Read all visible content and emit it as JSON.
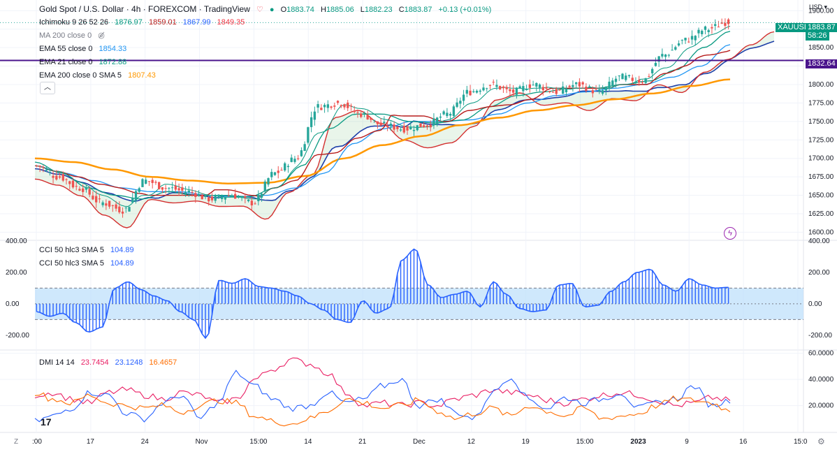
{
  "header": {
    "symbol_title": "Gold Spot / U.S. Dollar · 4h · FOREXCOM · TradingView",
    "o_label": "O",
    "o_value": "1883.74",
    "h_label": "H",
    "h_value": "1885.06",
    "l_label": "L",
    "l_value": "1882.23",
    "c_label": "C",
    "c_value": "1883.87",
    "change": "+0.13 (+0.01%)"
  },
  "legends": {
    "ichimoku": {
      "name": "Ichimoku 9 26 52 26",
      "v1": "1876.97",
      "v2": "1859.01",
      "v3": "1867.99",
      "v4": "1849.35"
    },
    "ma200": {
      "name": "MA 200 close 0"
    },
    "ema55": {
      "name": "EMA 55 close 0",
      "value": "1854.33"
    },
    "ema21": {
      "name": "EMA 21 close 0",
      "value": "1872.88"
    },
    "ema200": {
      "name": "EMA 200 close 0 SMA 5",
      "value": "1807.43"
    },
    "cci1": {
      "name": "CCI 50 hlc3 SMA 5",
      "value": "104.89"
    },
    "cci2": {
      "name": "CCI 50 hlc3 SMA 5",
      "value": "104.89"
    },
    "dmi": {
      "name": "DMI 14 14",
      "v1": "23.7454",
      "v2": "23.1248",
      "v3": "16.4657"
    }
  },
  "price_tags": {
    "symbol": "XAUUSD",
    "price": "1883.87",
    "countdown": "58:26",
    "hline": "1832.64",
    "currency": "USD"
  },
  "colors": {
    "up": "#26a69a",
    "down": "#ef5350",
    "tenkan": "#2962ff",
    "kijun": "#b71c1c",
    "ema21": "#089981",
    "ema55": "#2196f3",
    "ema200": "#ff9800",
    "hline": "#4a148c",
    "cci": "#2962ff",
    "cci_band": "#bbdefb",
    "dmi_plus": "#2962ff",
    "dmi_minus": "#e91e63",
    "adx": "#ff6d00"
  },
  "chart_data": [
    {
      "type": "candlestick",
      "title": "Gold Spot / U.S. Dollar · 4h · FOREXCOM · TradingView",
      "ylabel": "USD",
      "ylim": [
        1590,
        1905
      ],
      "y_ticks": [
        "1900.00",
        "1875.00",
        "1850.00",
        "1825.00",
        "1800.00",
        "1775.00",
        "1750.00",
        "1725.00",
        "1700.00",
        "1675.00",
        "1650.00",
        "1625.00",
        "1600.00"
      ],
      "x_ticks": [
        ":00",
        "17",
        "24",
        "Nov",
        "15:00",
        "14",
        "21",
        "Dec",
        "12",
        "19",
        "15:00",
        "2023",
        "9",
        "16",
        "15:0"
      ],
      "close_anchors": [
        1690,
        1675,
        1660,
        1640,
        1630,
        1670,
        1660,
        1655,
        1645,
        1650,
        1640,
        1680,
        1700,
        1770,
        1775,
        1760,
        1745,
        1740,
        1745,
        1760,
        1790,
        1800,
        1790,
        1800,
        1790,
        1800,
        1790,
        1810,
        1805,
        1840,
        1860,
        1875,
        1885
      ],
      "ema21_anchors": [
        1695,
        1680,
        1660,
        1650,
        1645,
        1655,
        1650,
        1650,
        1648,
        1660,
        1690,
        1740,
        1760,
        1760,
        1750,
        1748,
        1752,
        1770,
        1785,
        1790,
        1795,
        1795,
        1800,
        1805,
        1820,
        1850,
        1872
      ],
      "ema55_anchors": [
        1690,
        1680,
        1670,
        1660,
        1655,
        1655,
        1650,
        1648,
        1650,
        1660,
        1680,
        1720,
        1740,
        1750,
        1750,
        1752,
        1760,
        1775,
        1785,
        1790,
        1795,
        1800,
        1810,
        1825,
        1854
      ],
      "ema200_anchors": [
        1700,
        1695,
        1685,
        1675,
        1670,
        1666,
        1667,
        1676,
        1700,
        1718,
        1730,
        1745,
        1755,
        1765,
        1772,
        1780,
        1788,
        1798,
        1807
      ],
      "hline": 1832.64
    },
    {
      "type": "area",
      "name": "CCI 50 hlc3 SMA 5",
      "ylim": [
        -290,
        400
      ],
      "y_ticks": [
        "400.00",
        "200.00",
        "0.00",
        "-200.00"
      ],
      "band": [
        -100,
        100
      ],
      "anchors": [
        -50,
        -80,
        -60,
        -120,
        -180,
        -150,
        100,
        140,
        90,
        50,
        20,
        -50,
        -100,
        -220,
        150,
        130,
        160,
        110,
        100,
        80,
        50,
        0,
        -40,
        -100,
        -120,
        20,
        -60,
        -30,
        280,
        350,
        120,
        40,
        60,
        80,
        -20,
        140,
        60,
        -30,
        -50,
        -40,
        120,
        130,
        -20,
        -10,
        80,
        140,
        200,
        220,
        120,
        80,
        160,
        120,
        100,
        105
      ]
    },
    {
      "type": "line",
      "name": "DMI 14 14",
      "ylim": [
        0,
        62
      ],
      "y_ticks": [
        "60.0000",
        "40.0000",
        "20.0000"
      ],
      "series": [
        {
          "anchors": [
            28,
            30,
            25,
            22,
            30,
            32,
            28,
            25,
            30,
            28,
            22,
            25,
            40,
            48,
            55,
            52,
            45,
            30,
            20,
            22,
            20,
            22,
            20,
            25,
            28,
            32,
            30,
            28,
            24,
            22,
            25,
            28,
            30,
            28,
            24,
            20,
            22,
            26,
            24
          ]
        },
        {
          "anchors": [
            8,
            12,
            18,
            30,
            28,
            14,
            10,
            22,
            28,
            10,
            22,
            45,
            35,
            25,
            18,
            20,
            30,
            22,
            25,
            35,
            40,
            20,
            25,
            15,
            10,
            30,
            42,
            25,
            18,
            26,
            22,
            25,
            30,
            18,
            22,
            25,
            35,
            20,
            24
          ]
        },
        {
          "anchors": [
            30,
            25,
            22,
            28,
            22,
            20,
            18,
            20,
            15,
            20,
            24,
            22,
            12,
            8,
            6,
            10,
            16,
            25,
            22,
            18,
            20,
            24,
            16,
            10,
            14,
            18,
            12,
            20,
            16,
            12,
            18,
            10,
            12,
            14,
            20,
            25,
            24,
            22,
            16
          ]
        }
      ]
    }
  ]
}
